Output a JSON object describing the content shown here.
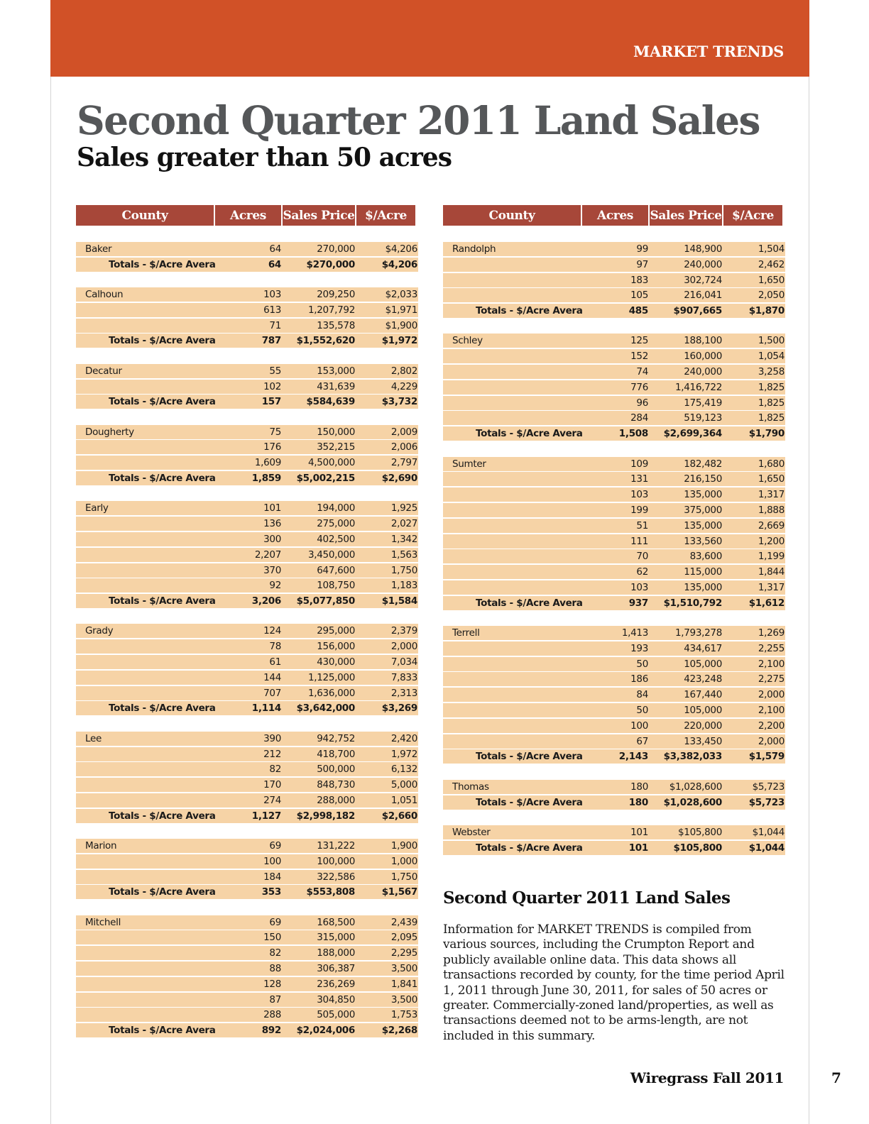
{
  "header": {
    "section_label": "MARKET TRENDS"
  },
  "title": "Second Quarter 2011 Land Sales",
  "subtitle": "Sales greater than 50 acres",
  "table_columns": [
    "County",
    "Acres",
    "Sales Price",
    "$/Acre"
  ],
  "totals_label": "Totals - $/Acre Average",
  "left_counties": [
    {
      "name": "Baker",
      "rows": [
        [
          "64",
          "270,000",
          "$4,206"
        ]
      ],
      "total": [
        "64",
        "$270,000",
        "$4,206"
      ]
    },
    {
      "name": "Calhoun",
      "rows": [
        [
          "103",
          "209,250",
          "$2,033"
        ],
        [
          "613",
          "1,207,792",
          "$1,971"
        ],
        [
          "71",
          "135,578",
          "$1,900"
        ]
      ],
      "total": [
        "787",
        "$1,552,620",
        "$1,972"
      ]
    },
    {
      "name": "Decatur",
      "rows": [
        [
          "55",
          "153,000",
          "2,802"
        ],
        [
          "102",
          "431,639",
          "4,229"
        ]
      ],
      "total": [
        "157",
        "$584,639",
        "$3,732"
      ]
    },
    {
      "name": "Dougherty",
      "rows": [
        [
          "75",
          "150,000",
          "2,009"
        ],
        [
          "176",
          "352,215",
          "2,006"
        ],
        [
          "1,609",
          "4,500,000",
          "2,797"
        ]
      ],
      "total": [
        "1,859",
        "$5,002,215",
        "$2,690"
      ]
    },
    {
      "name": "Early",
      "rows": [
        [
          "101",
          "194,000",
          "1,925"
        ],
        [
          "136",
          "275,000",
          "2,027"
        ],
        [
          "300",
          "402,500",
          "1,342"
        ],
        [
          "2,207",
          "3,450,000",
          "1,563"
        ],
        [
          "370",
          "647,600",
          "1,750"
        ],
        [
          "92",
          "108,750",
          "1,183"
        ]
      ],
      "total": [
        "3,206",
        "$5,077,850",
        "$1,584"
      ]
    },
    {
      "name": "Grady",
      "rows": [
        [
          "124",
          "295,000",
          "2,379"
        ],
        [
          "78",
          "156,000",
          "2,000"
        ],
        [
          "61",
          "430,000",
          "7,034"
        ],
        [
          "144",
          "1,125,000",
          "7,833"
        ],
        [
          "707",
          "1,636,000",
          "2,313"
        ]
      ],
      "total": [
        "1,114",
        "$3,642,000",
        "$3,269"
      ]
    },
    {
      "name": "Lee",
      "rows": [
        [
          "390",
          "942,752",
          "2,420"
        ],
        [
          "212",
          "418,700",
          "1,972"
        ],
        [
          "82",
          "500,000",
          "6,132"
        ],
        [
          "170",
          "848,730",
          "5,000"
        ],
        [
          "274",
          "288,000",
          "1,051"
        ]
      ],
      "total": [
        "1,127",
        "$2,998,182",
        "$2,660"
      ]
    },
    {
      "name": "Marion",
      "rows": [
        [
          "69",
          "131,222",
          "1,900"
        ],
        [
          "100",
          "100,000",
          "1,000"
        ],
        [
          "184",
          "322,586",
          "1,750"
        ]
      ],
      "total": [
        "353",
        "$553,808",
        "$1,567"
      ]
    },
    {
      "name": "Mitchell",
      "rows": [
        [
          "69",
          "168,500",
          "2,439"
        ],
        [
          "150",
          "315,000",
          "2,095"
        ],
        [
          "82",
          "188,000",
          "2,295"
        ],
        [
          "88",
          "306,387",
          "3,500"
        ],
        [
          "128",
          "236,269",
          "1,841"
        ],
        [
          "87",
          "304,850",
          "3,500"
        ],
        [
          "288",
          "505,000",
          "1,753"
        ]
      ],
      "total": [
        "892",
        "$2,024,006",
        "$2,268"
      ]
    }
  ],
  "right_counties": [
    {
      "name": "Randolph",
      "rows": [
        [
          "99",
          "148,900",
          "1,504"
        ],
        [
          "97",
          "240,000",
          "2,462"
        ],
        [
          "183",
          "302,724",
          "1,650"
        ],
        [
          "105",
          "216,041",
          "2,050"
        ]
      ],
      "total": [
        "485",
        "$907,665",
        "$1,870"
      ]
    },
    {
      "name": "Schley",
      "rows": [
        [
          "125",
          "188,100",
          "1,500"
        ],
        [
          "152",
          "160,000",
          "1,054"
        ],
        [
          "74",
          "240,000",
          "3,258"
        ],
        [
          "776",
          "1,416,722",
          "1,825"
        ],
        [
          "96",
          "175,419",
          "1,825"
        ],
        [
          "284",
          "519,123",
          "1,825"
        ]
      ],
      "total": [
        "1,508",
        "$2,699,364",
        "$1,790"
      ]
    },
    {
      "name": "Sumter",
      "rows": [
        [
          "109",
          "182,482",
          "1,680"
        ],
        [
          "131",
          "216,150",
          "1,650"
        ],
        [
          "103",
          "135,000",
          "1,317"
        ],
        [
          "199",
          "375,000",
          "1,888"
        ],
        [
          "51",
          "135,000",
          "2,669"
        ],
        [
          "111",
          "133,560",
          "1,200"
        ],
        [
          "70",
          "83,600",
          "1,199"
        ],
        [
          "62",
          "115,000",
          "1,844"
        ],
        [
          "103",
          "135,000",
          "1,317"
        ]
      ],
      "total": [
        "937",
        "$1,510,792",
        "$1,612"
      ]
    },
    {
      "name": "Terrell",
      "rows": [
        [
          "1,413",
          "1,793,278",
          "1,269"
        ],
        [
          "193",
          "434,617",
          "2,255"
        ],
        [
          "50",
          "105,000",
          "2,100"
        ],
        [
          "186",
          "423,248",
          "2,275"
        ],
        [
          "84",
          "167,440",
          "2,000"
        ],
        [
          "50",
          "105,000",
          "2,100"
        ],
        [
          "100",
          "220,000",
          "2,200"
        ],
        [
          "67",
          "133,450",
          "2,000"
        ]
      ],
      "total": [
        "2,143",
        "$3,382,033",
        "$1,579"
      ]
    },
    {
      "name": "Thomas",
      "rows": [
        [
          "180",
          "$1,028,600",
          "$5,723"
        ]
      ],
      "total": [
        "180",
        "$1,028,600",
        "$5,723"
      ]
    },
    {
      "name": "Webster",
      "rows": [
        [
          "101",
          "$105,800",
          "$1,044"
        ]
      ],
      "total": [
        "101",
        "$105,800",
        "$1,044"
      ]
    }
  ],
  "info": {
    "title": "Second Quarter 2011 Land Sales",
    "body": "Information for MARKET TRENDS is compiled from various sources, including the Crumpton Report and publicly available online data. This data shows all transactions recorded by county, for the time period April 1, 2011 through June 30, 2011, for sales of 50 acres or greater. Commercially-zoned land/properties, as well as transactions deemed not to be arms-length, are not included in this summary."
  },
  "footer": {
    "publication": "Wiregrass Fall 2011",
    "page_number": "7"
  }
}
